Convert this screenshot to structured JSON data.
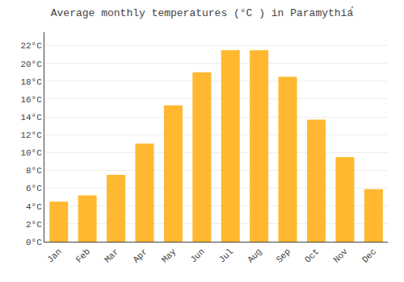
{
  "chart_data": {
    "type": "bar",
    "title": "Average monthly temperatures (°C ) in Paramythiá́",
    "categories": [
      "Jan",
      "Feb",
      "Mar",
      "Apr",
      "May",
      "Jun",
      "Jul",
      "Aug",
      "Sep",
      "Oct",
      "Nov",
      "Dec"
    ],
    "values": [
      4.5,
      5.2,
      7.5,
      11.0,
      15.3,
      19.0,
      21.5,
      21.5,
      18.5,
      13.7,
      9.5,
      5.9
    ],
    "color": "#FFB830",
    "ylim": [
      0,
      23.5
    ],
    "yticks": [
      {
        "value": 0,
        "label": "0°C"
      },
      {
        "value": 2,
        "label": "2°C"
      },
      {
        "value": 4,
        "label": "4°C"
      },
      {
        "value": 6,
        "label": "6°C"
      },
      {
        "value": 8,
        "label": "8°C"
      },
      {
        "value": 10,
        "label": "10°C"
      },
      {
        "value": 12,
        "label": "12°C"
      },
      {
        "value": 14,
        "label": "14°C"
      },
      {
        "value": 16,
        "label": "16°C"
      },
      {
        "value": 18,
        "label": "18°C"
      },
      {
        "value": 20,
        "label": "20°C"
      },
      {
        "value": 22,
        "label": "22°C"
      }
    ],
    "grid": true
  }
}
